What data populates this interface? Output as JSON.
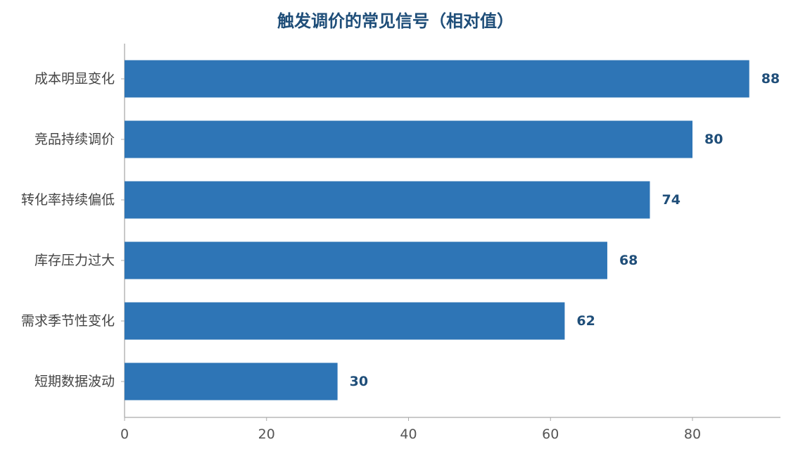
{
  "chart_data": {
    "type": "bar",
    "orientation": "horizontal",
    "title": "触发调价的常见信号（相对值）",
    "xlabel": "",
    "ylabel": "",
    "categories": [
      "成本明显变化",
      "竞品持续调价",
      "转化率持续偏低",
      "库存压力过大",
      "需求季节性变化",
      "短期数据波动"
    ],
    "values": [
      88,
      80,
      74,
      68,
      62,
      30
    ],
    "xlim": [
      0,
      92
    ],
    "x_ticks": [
      0,
      20,
      40,
      60,
      80
    ],
    "grid": false,
    "legend": "none",
    "colors": {
      "bar": "#2e75b6",
      "title": "#1f4e79",
      "value_label": "#1f4e79",
      "axis": "#aaaaaa"
    }
  }
}
